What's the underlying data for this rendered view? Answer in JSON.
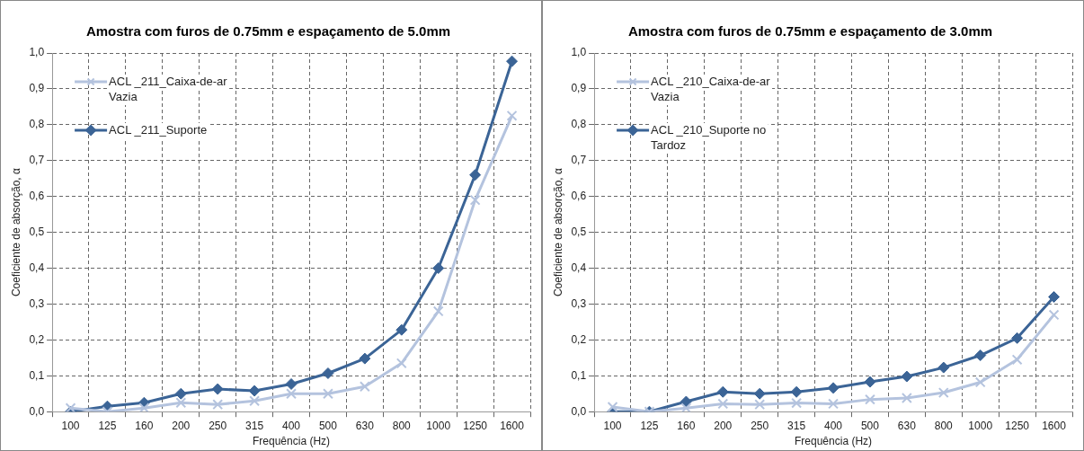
{
  "chart_data": [
    {
      "type": "line",
      "title": "Amostra com furos de 0.75mm e espaçamento de 5.0mm",
      "xlabel": "Frequência (Hz)",
      "ylabel": "Coeficiente de absorção, α",
      "categories": [
        "100",
        "125",
        "160",
        "200",
        "250",
        "315",
        "400",
        "500",
        "630",
        "800",
        "1000",
        "1250",
        "1600"
      ],
      "series": [
        {
          "name": "ACL _211_Caixa-de-ar Vazia",
          "color": "#b4c3de",
          "marker": "cross",
          "values": [
            0.01,
            0.0,
            0.01,
            0.025,
            0.02,
            0.03,
            0.05,
            0.05,
            0.07,
            0.135,
            0.28,
            0.59,
            0.825
          ]
        },
        {
          "name": "ACL _211_Suporte",
          "color": "#3b6496",
          "marker": "diamond",
          "values": [
            0.0,
            0.015,
            0.025,
            0.05,
            0.063,
            0.058,
            0.077,
            0.107,
            0.148,
            0.228,
            0.4,
            0.66,
            0.977
          ]
        }
      ],
      "ylim": [
        0,
        1
      ],
      "yticks": [
        {
          "value": 0,
          "label": "0,0"
        },
        {
          "value": 0.1,
          "label": "0,1"
        },
        {
          "value": 0.2,
          "label": "0,2"
        },
        {
          "value": 0.3,
          "label": "0,3"
        },
        {
          "value": 0.4,
          "label": "0,4"
        },
        {
          "value": 0.5,
          "label": "0,5"
        },
        {
          "value": 0.6,
          "label": "0,6"
        },
        {
          "value": 0.7,
          "label": "0,7"
        },
        {
          "value": 0.8,
          "label": "0,8"
        },
        {
          "value": 0.9,
          "label": "0,9"
        },
        {
          "value": 1,
          "label": "1,0"
        }
      ],
      "grid": true,
      "legend": "top left"
    },
    {
      "type": "line",
      "title": "Amostra com furos de 0.75mm e espaçamento de 3.0mm",
      "xlabel": "Frequência (Hz)",
      "ylabel": "Coeficiente de absorção, α",
      "categories": [
        "100",
        "125",
        "160",
        "200",
        "250",
        "315",
        "400",
        "500",
        "630",
        "800",
        "1000",
        "1250",
        "1600"
      ],
      "series": [
        {
          "name": "ACL _210_Caixa-de-ar Vazia",
          "color": "#b4c3de",
          "marker": "cross",
          "values": [
            0.013,
            0.0,
            0.01,
            0.022,
            0.02,
            0.024,
            0.022,
            0.034,
            0.038,
            0.053,
            0.082,
            0.145,
            0.27
          ]
        },
        {
          "name": "ACL _210_Suporte no Tardoz",
          "color": "#3b6496",
          "marker": "diamond",
          "values": [
            0.0,
            0.0,
            0.028,
            0.055,
            0.05,
            0.055,
            0.066,
            0.083,
            0.098,
            0.123,
            0.157,
            0.205,
            0.32
          ]
        }
      ],
      "ylim": [
        0,
        1
      ],
      "yticks": [
        {
          "value": 0,
          "label": "0,0"
        },
        {
          "value": 0.1,
          "label": "0,1"
        },
        {
          "value": 0.2,
          "label": "0,2"
        },
        {
          "value": 0.3,
          "label": "0,3"
        },
        {
          "value": 0.4,
          "label": "0,4"
        },
        {
          "value": 0.5,
          "label": "0,5"
        },
        {
          "value": 0.6,
          "label": "0,6"
        },
        {
          "value": 0.7,
          "label": "0,7"
        },
        {
          "value": 0.8,
          "label": "0,8"
        },
        {
          "value": 0.9,
          "label": "0,9"
        },
        {
          "value": 1,
          "label": "1,0"
        }
      ],
      "grid": true,
      "legend": "top left"
    }
  ]
}
